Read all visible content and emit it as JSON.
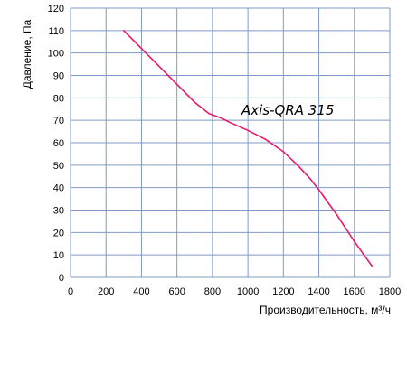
{
  "chart_data": {
    "type": "line",
    "title": "",
    "xlabel": "Производительность, м³/ч",
    "ylabel": "Давление, Па",
    "xlim": [
      0,
      1800
    ],
    "ylim": [
      0,
      120
    ],
    "x_ticks": [
      0,
      200,
      400,
      600,
      800,
      1000,
      1200,
      1400,
      1600,
      1800
    ],
    "y_ticks": [
      0,
      10,
      20,
      30,
      40,
      50,
      60,
      70,
      80,
      90,
      100,
      110,
      120
    ],
    "grid": true,
    "series": [
      {
        "name": "Axis-QRA 315",
        "color": "#e8196e",
        "x": [
          300,
          400,
          500,
          600,
          700,
          780,
          850,
          900,
          1000,
          1100,
          1200,
          1280,
          1350,
          1400,
          1500,
          1600,
          1700
        ],
        "y": [
          110,
          102,
          94,
          86,
          78,
          73,
          71,
          69,
          65.5,
          61.5,
          56,
          50,
          44,
          39,
          28,
          16,
          5
        ]
      }
    ]
  }
}
